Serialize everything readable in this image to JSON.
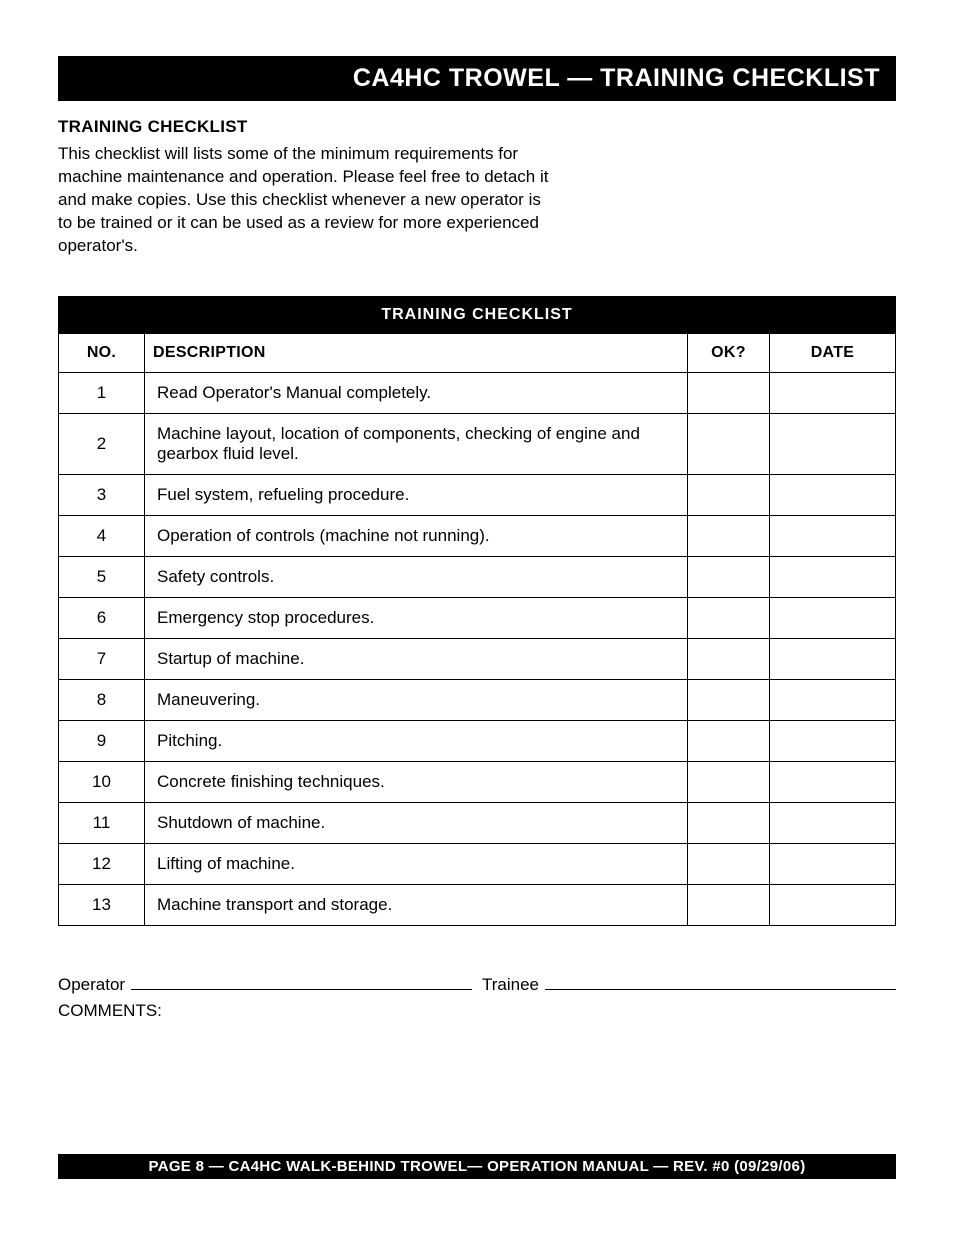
{
  "title_bar": "CA4HC TROWEL — TRAINING CHECKLIST",
  "section_heading": "TRAINING CHECKLIST",
  "intro": "This checklist will lists some of the minimum requirements for machine maintenance and operation. Please feel free to detach it and make copies. Use this checklist whenever a new operator is to be trained or it can be used as a review for more experienced operator's.",
  "table": {
    "caption": "TRAINING CHECKLIST",
    "columns": {
      "no": "NO.",
      "desc": "DESCRIPTION",
      "ok": "OK?",
      "date": "DATE"
    },
    "rows": [
      {
        "no": "1",
        "desc": "Read Operator's Manual completely."
      },
      {
        "no": "2",
        "desc": "Machine layout, location of components, checking of engine and gearbox fluid level."
      },
      {
        "no": "3",
        "desc": "Fuel system, refueling procedure."
      },
      {
        "no": "4",
        "desc": "Operation of controls (machine not running)."
      },
      {
        "no": "5",
        "desc": "Safety controls."
      },
      {
        "no": "6",
        "desc": "Emergency stop procedures."
      },
      {
        "no": "7",
        "desc": "Startup of machine."
      },
      {
        "no": "8",
        "desc": "Maneuvering."
      },
      {
        "no": "9",
        "desc": "Pitching."
      },
      {
        "no": "10",
        "desc": "Concrete finishing techniques."
      },
      {
        "no": "11",
        "desc": "Shutdown of machine."
      },
      {
        "no": "12",
        "desc": "Lifting of machine."
      },
      {
        "no": "13",
        "desc": "Machine transport and storage."
      }
    ]
  },
  "sign": {
    "operator_label": "Operator",
    "trainee_label": "Trainee"
  },
  "comments_label": "COMMENTS:",
  "footer": "PAGE 8 — CA4HC WALK-BEHIND TROWEL— OPERATION MANUAL — REV. #0 (09/29/06)"
}
